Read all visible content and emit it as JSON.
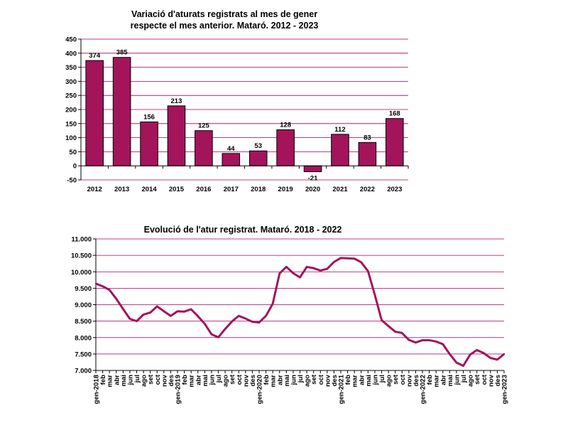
{
  "chart_data": [
    {
      "type": "bar",
      "title_lines": [
        "Variació d'aturats registrats al mes de gener",
        "respecte el mes anterior. Mataró. 2012 - 2023"
      ],
      "categories": [
        "2012",
        "2013",
        "2014",
        "2015",
        "2016",
        "2017",
        "2018",
        "2019",
        "2020",
        "2021",
        "2022",
        "2023"
      ],
      "values": [
        374,
        385,
        156,
        213,
        125,
        44,
        53,
        128,
        -21,
        112,
        83,
        168
      ],
      "ylim": [
        -50,
        450
      ],
      "yticks": [
        -50,
        0,
        50,
        100,
        150,
        200,
        250,
        300,
        350,
        400,
        450
      ],
      "ytick_labels": [
        "-50",
        "0",
        "50",
        "100",
        "150",
        "200",
        "250",
        "300",
        "350",
        "400",
        "450"
      ],
      "grid": true,
      "colors": {
        "bar": "#a3145a",
        "bar_outline": "#000000",
        "grid": "#a0005a"
      }
    },
    {
      "type": "line",
      "title": "Evolució de l'atur registrat. Mataró. 2018 - 2022",
      "x": [
        "gen-2018",
        "feb",
        "mar",
        "abr",
        "mai",
        "jun",
        "jul",
        "ago",
        "set",
        "oct",
        "nov",
        "des",
        "gen-2019",
        "feb",
        "mar",
        "abr",
        "mai",
        "jun",
        "jul",
        "ago",
        "set",
        "oct",
        "nov",
        "des",
        "gen-2020",
        "feb",
        "mar",
        "abr",
        "mai",
        "jun",
        "jul",
        "ago",
        "set",
        "oct",
        "nov",
        "des",
        "gen-2021",
        "feb",
        "mar",
        "abr",
        "mai",
        "jun",
        "jul",
        "ago",
        "set",
        "oct",
        "nov",
        "des",
        "gen-2022",
        "feb",
        "mar",
        "abr",
        "mai",
        "jun",
        "jul",
        "ago",
        "set",
        "oct",
        "nov",
        "des",
        "gen-2023"
      ],
      "values": [
        9640,
        9560,
        9450,
        9180,
        8870,
        8570,
        8500,
        8700,
        8760,
        8950,
        8800,
        8660,
        8800,
        8790,
        8860,
        8650,
        8420,
        8100,
        8010,
        8260,
        8490,
        8660,
        8580,
        8480,
        8460,
        8660,
        9030,
        9950,
        10150,
        9960,
        9830,
        10150,
        10110,
        10040,
        10090,
        10300,
        10420,
        10410,
        10400,
        10290,
        10020,
        9300,
        8530,
        8350,
        8180,
        8140,
        7930,
        7850,
        7920,
        7920,
        7880,
        7800,
        7500,
        7240,
        7140,
        7480,
        7620,
        7530,
        7380,
        7330,
        7500
      ],
      "ylim": [
        7000,
        11000
      ],
      "yticks": [
        7000,
        7500,
        8000,
        8500,
        9000,
        9500,
        10000,
        10500,
        11000
      ],
      "ytick_labels": [
        "7.000",
        "7.500",
        "8.000",
        "8.500",
        "9.000",
        "9.500",
        "10.000",
        "10.500",
        "11.000"
      ],
      "grid": true,
      "colors": {
        "line": "#a3145a",
        "grid": "#a0005a"
      }
    }
  ]
}
